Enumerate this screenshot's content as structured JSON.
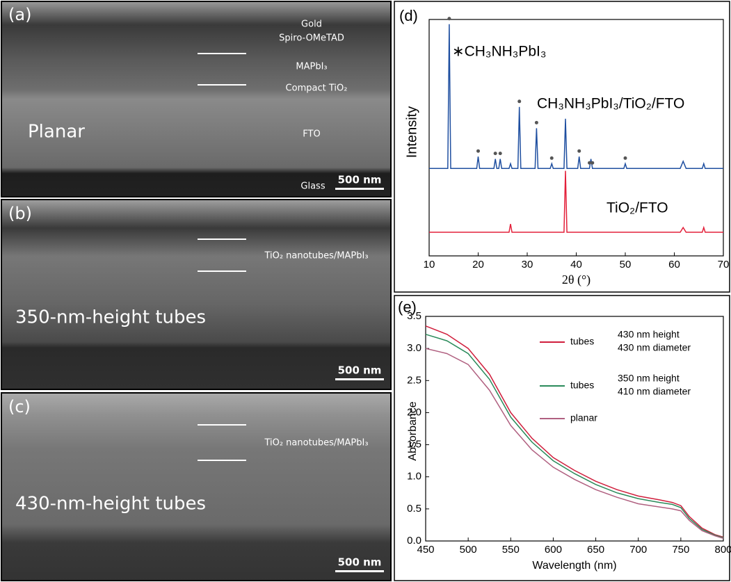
{
  "sem_panels": [
    {
      "label": "(a)",
      "layers": [
        "Gold",
        "Spiro-OMeTAD",
        "MAPbI₃",
        "Compact TiO₂",
        "FTO",
        "Glass"
      ],
      "caption": "Planar",
      "scale_bar": "500 nm"
    },
    {
      "label": "(b)",
      "layers": [
        "TiO₂ nanotubes/MAPbI₃"
      ],
      "caption": "350-nm-height tubes",
      "scale_bar": "500 nm"
    },
    {
      "label": "(c)",
      "layers": [
        "TiO₂ nanotubes/MAPbI₃"
      ],
      "caption": "430-nm-height tubes",
      "scale_bar": "500 nm"
    }
  ],
  "chart_data": [
    {
      "type": "line",
      "panel_label": "(d)",
      "xlabel": "2θ (°)",
      "ylabel": "Intensity",
      "annotations": [
        "∗CH₃NH₃PbI₃",
        "CH₃NH₃PbI₃/TiO₂/FTO",
        "TiO₂/FTO"
      ],
      "x": [
        10,
        13.8,
        14.1,
        14.4,
        19.7,
        20,
        20.3,
        23.2,
        23.5,
        23.8,
        24.2,
        24.5,
        24.8,
        26.3,
        26.6,
        26.9,
        28.1,
        28.4,
        28.7,
        31.6,
        31.9,
        32.2,
        34.7,
        35,
        35.3,
        37.5,
        37.8,
        38.1,
        40.3,
        40.6,
        40.9,
        42.7,
        43,
        43.3,
        49.7,
        50,
        50.3,
        61.2,
        61.8,
        62.4,
        65.7,
        66,
        66.3,
        70
      ],
      "series": [
        {
          "color": "#1f4fa0",
          "values": [
            37,
            37,
            98,
            37,
            37,
            42,
            37,
            37,
            41,
            37,
            37,
            41,
            37,
            37,
            39,
            37,
            37,
            63,
            37,
            37,
            54,
            37,
            37,
            39,
            37,
            37,
            58,
            37,
            37,
            42,
            37,
            37,
            41,
            37,
            37,
            39,
            37,
            37,
            40,
            37,
            37,
            39,
            37,
            37
          ]
        },
        {
          "color": "#e3203a",
          "values": [
            10,
            10,
            10,
            10,
            10,
            10,
            10,
            10,
            10,
            10,
            10,
            10,
            10,
            10,
            13.5,
            10,
            10,
            10,
            10,
            10,
            10,
            10,
            10,
            10,
            10,
            10,
            36,
            10,
            10,
            10,
            10,
            10,
            10,
            10,
            10,
            10,
            10,
            10,
            12,
            10,
            10,
            12,
            10,
            10
          ]
        }
      ],
      "peak_marker_x": [
        14.1,
        20,
        23.5,
        24.5,
        28.4,
        31.9,
        35,
        40.6,
        42.7,
        43.3,
        50
      ],
      "xlim": [
        10,
        70
      ],
      "xticks": [
        10,
        20,
        30,
        40,
        50,
        60,
        70
      ],
      "ylim": [
        0,
        100
      ]
    },
    {
      "type": "line",
      "panel_label": "(e)",
      "xlabel": "Wavelength (nm)",
      "ylabel": "Absorbance",
      "x": [
        450,
        475,
        500,
        525,
        550,
        575,
        600,
        625,
        650,
        675,
        700,
        725,
        740,
        750,
        760,
        775,
        790,
        800
      ],
      "series": [
        {
          "name": "tubes",
          "description": [
            "430 nm height",
            "430 nm diameter"
          ],
          "color": "#d01e3c",
          "values": [
            3.35,
            3.22,
            3.0,
            2.6,
            2.0,
            1.6,
            1.3,
            1.1,
            0.93,
            0.8,
            0.7,
            0.64,
            0.6,
            0.55,
            0.38,
            0.2,
            0.1,
            0.06
          ]
        },
        {
          "name": "tubes",
          "description": [
            "350 nm height",
            "410 nm diameter"
          ],
          "color": "#2a8a5a",
          "values": [
            3.22,
            3.12,
            2.92,
            2.52,
            1.93,
            1.54,
            1.25,
            1.05,
            0.88,
            0.75,
            0.66,
            0.6,
            0.57,
            0.52,
            0.35,
            0.18,
            0.09,
            0.05
          ]
        },
        {
          "name": "planar",
          "color": "#b06080",
          "values": [
            3.0,
            2.92,
            2.75,
            2.35,
            1.8,
            1.42,
            1.15,
            0.96,
            0.8,
            0.68,
            0.58,
            0.53,
            0.5,
            0.47,
            0.32,
            0.16,
            0.08,
            0.04
          ]
        }
      ],
      "xlim": [
        450,
        800
      ],
      "xticks": [
        450,
        500,
        550,
        600,
        650,
        700,
        750,
        800
      ],
      "ylim": [
        0,
        3.5
      ],
      "yticks": [
        {
          "value": 0,
          "label": "0.0"
        },
        0.5,
        {
          "value": 1,
          "label": "1.0"
        },
        1.5,
        {
          "value": 2,
          "label": "2.0"
        },
        2.5,
        {
          "value": 3,
          "label": "3.0"
        },
        3.5
      ],
      "legend": "upper right"
    }
  ]
}
